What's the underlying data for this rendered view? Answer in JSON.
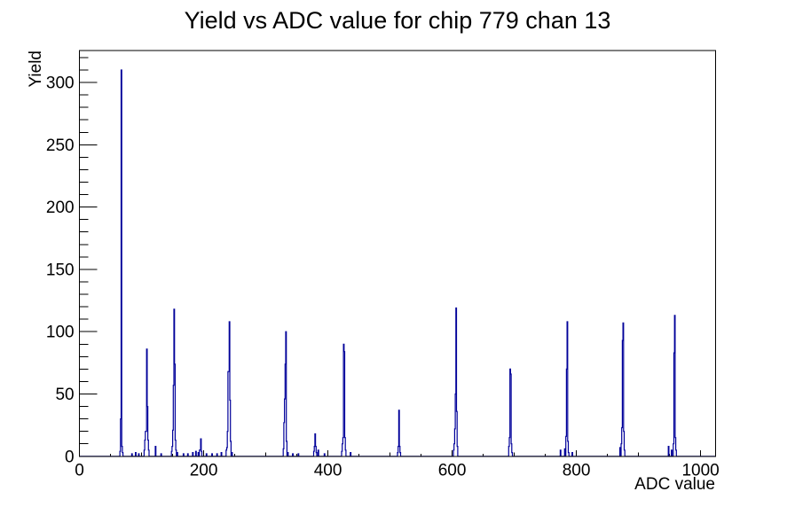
{
  "window": {
    "title": "Yield vs ADC value for chip 779 chan 13"
  },
  "colors": {
    "histogram_line": "#000099",
    "axis": "#000000",
    "text": "#000000",
    "background": "#ffffff"
  },
  "chart_data": {
    "type": "bar",
    "subtype": "histogram-step-outline",
    "title": "Yield vs ADC value for chip 779 chan 13",
    "xlabel": "ADC value",
    "ylabel": "Yield",
    "xlim": [
      0,
      1024
    ],
    "ylim": [
      0,
      325.5
    ],
    "grid": false,
    "legend": false,
    "bin_width": 1,
    "x_major_ticks": [
      0,
      200,
      400,
      600,
      800,
      1000
    ],
    "x_tick_labels": [
      "0",
      "200",
      "400",
      "600",
      "800",
      "1000"
    ],
    "x_minor_tick_step": 50,
    "y_major_ticks": [
      0,
      50,
      100,
      150,
      200,
      250,
      300
    ],
    "y_tick_labels": [
      "0",
      "50",
      "100",
      "150",
      "200",
      "250",
      "300"
    ],
    "y_minor_tick_step": 10,
    "bins": [
      [
        65,
        4
      ],
      [
        66,
        30
      ],
      [
        67,
        310
      ],
      [
        68,
        8
      ],
      [
        69,
        3
      ],
      [
        84,
        2
      ],
      [
        90,
        3
      ],
      [
        95,
        2
      ],
      [
        104,
        5
      ],
      [
        105,
        13
      ],
      [
        106,
        20
      ],
      [
        107,
        20
      ],
      [
        108,
        86
      ],
      [
        109,
        40
      ],
      [
        110,
        13
      ],
      [
        111,
        5
      ],
      [
        122,
        8
      ],
      [
        131,
        2
      ],
      [
        148,
        4
      ],
      [
        149,
        8
      ],
      [
        150,
        21
      ],
      [
        151,
        57
      ],
      [
        152,
        118
      ],
      [
        153,
        74
      ],
      [
        154,
        13
      ],
      [
        155,
        5
      ],
      [
        157,
        3
      ],
      [
        167,
        2
      ],
      [
        174,
        2
      ],
      [
        182,
        3
      ],
      [
        187,
        4
      ],
      [
        191,
        3
      ],
      [
        193,
        5
      ],
      [
        194,
        5
      ],
      [
        195,
        14
      ],
      [
        196,
        4
      ],
      [
        204,
        2
      ],
      [
        213,
        2
      ],
      [
        221,
        2
      ],
      [
        228,
        3
      ],
      [
        236,
        5
      ],
      [
        237,
        7
      ],
      [
        238,
        20
      ],
      [
        239,
        68
      ],
      [
        240,
        68
      ],
      [
        241,
        108
      ],
      [
        242,
        45
      ],
      [
        243,
        12
      ],
      [
        245,
        3
      ],
      [
        328,
        6
      ],
      [
        329,
        27
      ],
      [
        330,
        46
      ],
      [
        331,
        74
      ],
      [
        332,
        100
      ],
      [
        333,
        12
      ],
      [
        335,
        3
      ],
      [
        343,
        2
      ],
      [
        352,
        2
      ],
      [
        377,
        4
      ],
      [
        378,
        8
      ],
      [
        379,
        18
      ],
      [
        380,
        8
      ],
      [
        381,
        3
      ],
      [
        384,
        5
      ],
      [
        394,
        2
      ],
      [
        422,
        4
      ],
      [
        423,
        10
      ],
      [
        424,
        15
      ],
      [
        425,
        90
      ],
      [
        426,
        84
      ],
      [
        427,
        15
      ],
      [
        428,
        5
      ],
      [
        436,
        3
      ],
      [
        512,
        3
      ],
      [
        513,
        8
      ],
      [
        514,
        37
      ],
      [
        515,
        8
      ],
      [
        516,
        3
      ],
      [
        602,
        5
      ],
      [
        603,
        10
      ],
      [
        604,
        22
      ],
      [
        605,
        50
      ],
      [
        606,
        119
      ],
      [
        607,
        36
      ],
      [
        608,
        8
      ],
      [
        691,
        8
      ],
      [
        692,
        15
      ],
      [
        693,
        70
      ],
      [
        694,
        66
      ],
      [
        695,
        10
      ],
      [
        696,
        3
      ],
      [
        774,
        5
      ],
      [
        781,
        6
      ],
      [
        783,
        16
      ],
      [
        784,
        70
      ],
      [
        785,
        108
      ],
      [
        786,
        12
      ],
      [
        787,
        3
      ],
      [
        793,
        3
      ],
      [
        870,
        7
      ],
      [
        872,
        10
      ],
      [
        873,
        23
      ],
      [
        874,
        93
      ],
      [
        875,
        107
      ],
      [
        876,
        20
      ],
      [
        877,
        5
      ],
      [
        948,
        8
      ],
      [
        953,
        5
      ],
      [
        956,
        10
      ],
      [
        957,
        83
      ],
      [
        958,
        113
      ],
      [
        959,
        15
      ],
      [
        960,
        5
      ]
    ],
    "peaks": [
      {
        "adc": 67,
        "yield": 310
      },
      {
        "adc": 108,
        "yield": 86
      },
      {
        "adc": 152,
        "yield": 118
      },
      {
        "adc": 195,
        "yield": 14
      },
      {
        "adc": 241,
        "yield": 108
      },
      {
        "adc": 332,
        "yield": 100
      },
      {
        "adc": 379,
        "yield": 18
      },
      {
        "adc": 425,
        "yield": 90
      },
      {
        "adc": 514,
        "yield": 37
      },
      {
        "adc": 606,
        "yield": 119
      },
      {
        "adc": 693,
        "yield": 70
      },
      {
        "adc": 785,
        "yield": 108
      },
      {
        "adc": 875,
        "yield": 107
      },
      {
        "adc": 958,
        "yield": 113
      }
    ]
  }
}
